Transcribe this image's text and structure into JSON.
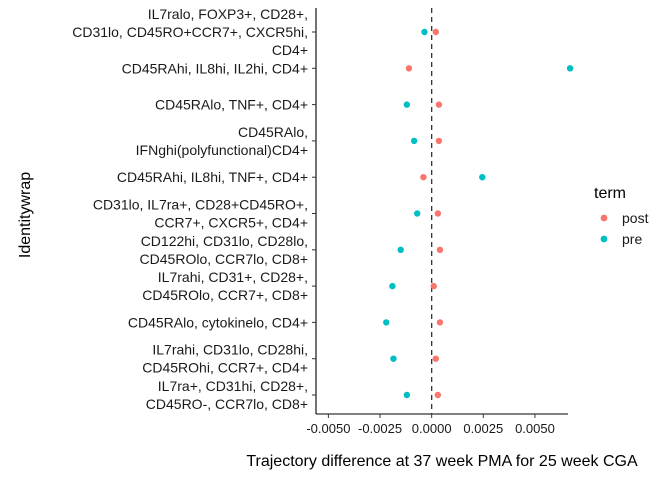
{
  "chart_data": {
    "type": "scatter",
    "xlabel": "Trajectory difference at 37 week PMA for 25 week CGA",
    "ylabel": "Identitywrap",
    "xlim": [
      -0.0056,
      0.0066
    ],
    "x_ticks": [
      {
        "value": -0.005,
        "label": "-0.0050"
      },
      {
        "value": -0.0025,
        "label": "-0.0025"
      },
      {
        "value": 0.0,
        "label": "0.0000"
      },
      {
        "value": 0.0025,
        "label": "0.0025"
      },
      {
        "value": 0.005,
        "label": "0.0050"
      }
    ],
    "reference_line": {
      "x": 0,
      "style": "dashed"
    },
    "grid": false,
    "legend": {
      "title": "term",
      "placement": "right",
      "entries": [
        {
          "name": "post",
          "color": "#F8766D"
        },
        {
          "name": "pre",
          "color": "#00BFC4"
        }
      ]
    },
    "categories": [
      {
        "lines": [
          "IL7ralo, FOXP3+, CD28+,",
          "CD31lo, CD45RO+CCR7+, CXCR5hi,",
          "CD4+"
        ],
        "post": 0.0002,
        "pre": -0.00035
      },
      {
        "lines": [
          "CD45RAhi, IL8hi, IL2hi, CD4+"
        ],
        "post": -0.0011,
        "pre": 0.0067
      },
      {
        "lines": [
          "CD45RAlo, TNF+, CD4+"
        ],
        "post": 0.00035,
        "pre": -0.0012
      },
      {
        "lines": [
          "CD45RAlo,",
          "IFNghi(polyfunctional)CD4+"
        ],
        "post": 0.00035,
        "pre": -0.00085
      },
      {
        "lines": [
          "CD45RAhi, IL8hi, TNF+, CD4+"
        ],
        "post": -0.0004,
        "pre": 0.00245
      },
      {
        "lines": [
          "CD31lo, IL7ra+, CD28+CD45RO+,",
          "CCR7+, CXCR5+, CD4+"
        ],
        "post": 0.0003,
        "pre": -0.0007
      },
      {
        "lines": [
          "CD122hi, CD31lo, CD28lo,",
          "CD45ROlo, CCR7lo, CD8+"
        ],
        "post": 0.0004,
        "pre": -0.0015
      },
      {
        "lines": [
          "IL7rahi, CD31+, CD28+,",
          "CD45ROlo, CCR7+, CD8+"
        ],
        "post": 0.0001,
        "pre": -0.0019
      },
      {
        "lines": [
          "CD45RAlo, cytokinelo, CD4+"
        ],
        "post": 0.0004,
        "pre": -0.0022
      },
      {
        "lines": [
          "IL7rahi, CD31lo, CD28hi,",
          "CD45ROhi, CCR7+, CD4+"
        ],
        "post": 0.0002,
        "pre": -0.00185
      },
      {
        "lines": [
          "IL7ra+, CD31hi, CD28+,",
          "CD45RO-, CCR7lo, CD8+"
        ],
        "post": 0.0003,
        "pre": -0.0012
      }
    ]
  }
}
